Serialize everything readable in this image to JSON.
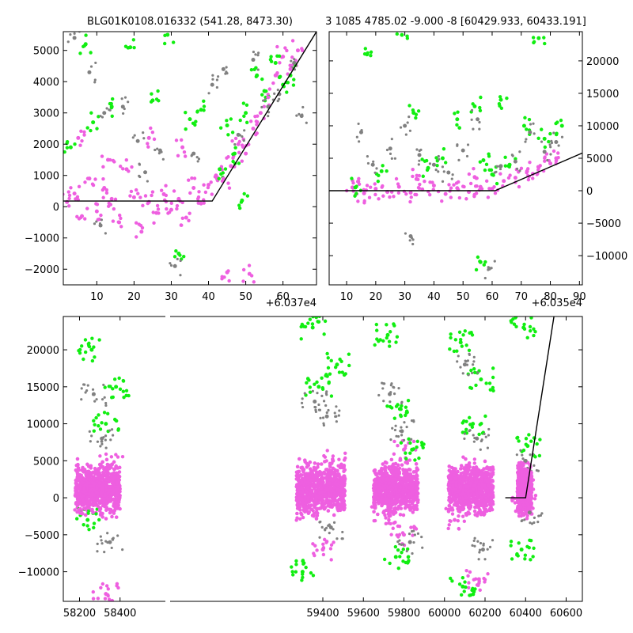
{
  "colors": {
    "magenta": "#ee5fe0",
    "green": "#11ee11",
    "gray": "#808080",
    "model": "#000000"
  },
  "chart_data": [
    {
      "type": "scatter",
      "title": "BLG01K0108.016332 (541.28, 8473.30)",
      "x_offset_label": "+6.037e4",
      "xlim": [
        1,
        69
      ],
      "ylim": [
        -2500,
        5600
      ],
      "x_ticks": [
        10,
        20,
        30,
        40,
        50,
        60
      ],
      "y_ticks": [
        -2000,
        -1000,
        0,
        1000,
        2000,
        3000,
        4000,
        5000
      ],
      "y_tick_side": "left",
      "model_line": [
        [
          1,
          180
        ],
        [
          41,
          180
        ],
        [
          69,
          5600
        ]
      ],
      "series": [
        {
          "color": "magenta",
          "points": [
            [
              2,
              150
            ],
            [
              4,
              420
            ],
            [
              6,
              -300
            ],
            [
              8,
              900
            ],
            [
              10,
              -150
            ],
            [
              12,
              600
            ],
            [
              14,
              250
            ],
            [
              16,
              -500
            ],
            [
              18,
              1200
            ],
            [
              20,
              300
            ],
            [
              22,
              -800
            ],
            [
              24,
              150
            ],
            [
              26,
              -200
            ],
            [
              28,
              400
            ],
            [
              30,
              -100
            ],
            [
              32,
              250
            ],
            [
              34,
              -350
            ],
            [
              36,
              600
            ],
            [
              38,
              100
            ],
            [
              40,
              700
            ],
            [
              42,
              1000
            ],
            [
              44,
              900
            ],
            [
              46,
              1300
            ],
            [
              48,
              2000
            ],
            [
              50,
              1700
            ],
            [
              52,
              2500
            ],
            [
              54,
              3000
            ],
            [
              56,
              3500
            ],
            [
              58,
              4200
            ],
            [
              60,
              4800
            ],
            [
              62,
              4400
            ],
            [
              64,
              5000
            ],
            [
              5,
              2200
            ],
            [
              13,
              1500
            ],
            [
              24,
              2200
            ],
            [
              33,
              1900
            ],
            [
              45,
              -2100
            ],
            [
              51,
              -2150
            ]
          ]
        },
        {
          "color": "green",
          "points": [
            [
              3,
              1900
            ],
            [
              7,
              5200
            ],
            [
              9,
              2700
            ],
            [
              14,
              3200
            ],
            [
              19,
              5100
            ],
            [
              25,
              3400
            ],
            [
              29,
              5500
            ],
            [
              35,
              2800
            ],
            [
              38,
              3100
            ],
            [
              43,
              1200
            ],
            [
              45,
              2600
            ],
            [
              47,
              1700
            ],
            [
              50,
              3000
            ],
            [
              53,
              4200
            ],
            [
              55,
              3700
            ],
            [
              58,
              4600
            ],
            [
              60,
              3900
            ],
            [
              62,
              4200
            ],
            [
              32,
              -1500
            ],
            [
              49,
              200
            ]
          ]
        },
        {
          "color": "gray",
          "points": [
            [
              4,
              5400
            ],
            [
              8,
              4300
            ],
            [
              12,
              3000
            ],
            [
              17,
              3200
            ],
            [
              21,
              2100
            ],
            [
              27,
              1800
            ],
            [
              31,
              -1900
            ],
            [
              36,
              1700
            ],
            [
              41,
              3900
            ],
            [
              44,
              4400
            ],
            [
              48,
              2300
            ],
            [
              52,
              4700
            ],
            [
              56,
              3200
            ],
            [
              59,
              3600
            ],
            [
              63,
              4600
            ],
            [
              65,
              2900
            ],
            [
              23,
              1100
            ],
            [
              11,
              -600
            ]
          ]
        }
      ]
    },
    {
      "type": "scatter",
      "title": "3 1085 4785.02 -9.000 -8 [60429.933, 60433.191]",
      "x_offset_label": "+6.035e4",
      "xlim": [
        4,
        91
      ],
      "ylim": [
        -14500,
        24500
      ],
      "x_ticks": [
        10,
        20,
        30,
        40,
        50,
        60,
        70,
        80,
        90
      ],
      "y_ticks": [
        -10000,
        -5000,
        0,
        5000,
        10000,
        15000,
        20000
      ],
      "y_tick_side": "right",
      "model_line": [
        [
          4,
          0
        ],
        [
          61,
          0
        ],
        [
          91,
          5800
        ]
      ],
      "series": [
        {
          "color": "magenta",
          "points": [
            [
              12,
              500
            ],
            [
              16,
              -400
            ],
            [
              20,
              300
            ],
            [
              24,
              -200
            ],
            [
              28,
              600
            ],
            [
              32,
              -300
            ],
            [
              36,
              200
            ],
            [
              40,
              800
            ],
            [
              44,
              -500
            ],
            [
              48,
              400
            ],
            [
              52,
              -200
            ],
            [
              56,
              600
            ],
            [
              60,
              300
            ],
            [
              64,
              1500
            ],
            [
              68,
              2000
            ],
            [
              72,
              3000
            ],
            [
              76,
              3600
            ],
            [
              80,
              4200
            ],
            [
              14,
              1400
            ],
            [
              34,
              1800
            ],
            [
              54,
              2100
            ],
            [
              74,
              2600
            ],
            [
              82,
              5000
            ]
          ]
        },
        {
          "color": "green",
          "points": [
            [
              13,
              500
            ],
            [
              17,
              21000
            ],
            [
              22,
              3000
            ],
            [
              29,
              24000
            ],
            [
              33,
              12000
            ],
            [
              38,
              3500
            ],
            [
              43,
              5000
            ],
            [
              48,
              11000
            ],
            [
              54,
              13000
            ],
            [
              56,
              -11000
            ],
            [
              60,
              2500
            ],
            [
              63,
              14000
            ],
            [
              66,
              4000
            ],
            [
              71,
              10000
            ],
            [
              76,
              23500
            ],
            [
              78,
              8000
            ],
            [
              84,
              10000
            ],
            [
              57,
              4700
            ]
          ]
        },
        {
          "color": "gray",
          "points": [
            [
              15,
              9000
            ],
            [
              19,
              4000
            ],
            [
              25,
              6500
            ],
            [
              30,
              10000
            ],
            [
              35,
              5500
            ],
            [
              40,
              4000
            ],
            [
              45,
              2800
            ],
            [
              50,
              6200
            ],
            [
              55,
              11000
            ],
            [
              59,
              -12000
            ],
            [
              63,
              3800
            ],
            [
              68,
              4500
            ],
            [
              73,
              9000
            ],
            [
              78,
              6000
            ],
            [
              82,
              7500
            ],
            [
              32,
              -7000
            ]
          ]
        }
      ]
    },
    {
      "type": "scatter",
      "title": "",
      "xlim": [
        58120,
        60680
      ],
      "ylim": [
        -14000,
        24500
      ],
      "x_ticks": [
        58200,
        58400,
        59400,
        59600,
        59800,
        60000,
        60200,
        60400,
        60600
      ],
      "y_ticks": [
        -10000,
        -5000,
        0,
        5000,
        10000,
        15000,
        20000
      ],
      "y_tick_side": "left",
      "broken_x_axis": [
        58450,
        59250
      ],
      "model_line": [
        [
          60300,
          0
        ],
        [
          60400,
          0
        ],
        [
          60540,
          24500
        ]
      ],
      "season_ranges": [
        [
          58180,
          58400
        ],
        [
          59270,
          59510
        ],
        [
          59650,
          59870
        ],
        [
          60020,
          60240
        ],
        [
          60360,
          60430
        ]
      ],
      "series": [
        {
          "color": "magenta",
          "points": [
            [
              58300,
              2000
            ],
            [
              59400,
              2500
            ],
            [
              59760,
              3000
            ],
            [
              60120,
              2000
            ],
            [
              60400,
              1500
            ],
            [
              58220,
              -500
            ],
            [
              59320,
              -1500
            ],
            [
              59700,
              -2000
            ],
            [
              60050,
              -3000
            ],
            [
              60390,
              -1000
            ],
            [
              58360,
              4500
            ],
            [
              59450,
              5000
            ],
            [
              59800,
              6500
            ],
            [
              60150,
              4000
            ],
            [
              58330,
              -13000
            ],
            [
              59400,
              -7000
            ],
            [
              59800,
              -5000
            ],
            [
              60170,
              -11000
            ]
          ]
        },
        {
          "color": "green",
          "points": [
            [
              58330,
              10000
            ],
            [
              59380,
              15000
            ],
            [
              59780,
              12000
            ],
            [
              60140,
              10000
            ],
            [
              60410,
              7000
            ],
            [
              58260,
              20000
            ],
            [
              59350,
              23000
            ],
            [
              59720,
              22000
            ],
            [
              60080,
              21000
            ],
            [
              60390,
              23000
            ],
            [
              58380,
              15000
            ],
            [
              59470,
              18000
            ],
            [
              59840,
              6500
            ],
            [
              60180,
              16000
            ],
            [
              58240,
              -3000
            ],
            [
              59300,
              -10000
            ],
            [
              59760,
              -8000
            ],
            [
              60090,
              -12000
            ],
            [
              60380,
              -7000
            ]
          ]
        },
        {
          "color": "gray",
          "points": [
            [
              58310,
              8000
            ],
            [
              59420,
              11000
            ],
            [
              59790,
              9000
            ],
            [
              60160,
              8000
            ],
            [
              60400,
              5000
            ],
            [
              58270,
              14000
            ],
            [
              59360,
              13000
            ],
            [
              59730,
              14000
            ],
            [
              60100,
              18000
            ],
            [
              58350,
              -6000
            ],
            [
              59440,
              -4000
            ],
            [
              59830,
              -6000
            ],
            [
              60190,
              -7000
            ],
            [
              60420,
              -2000
            ]
          ]
        }
      ]
    }
  ]
}
